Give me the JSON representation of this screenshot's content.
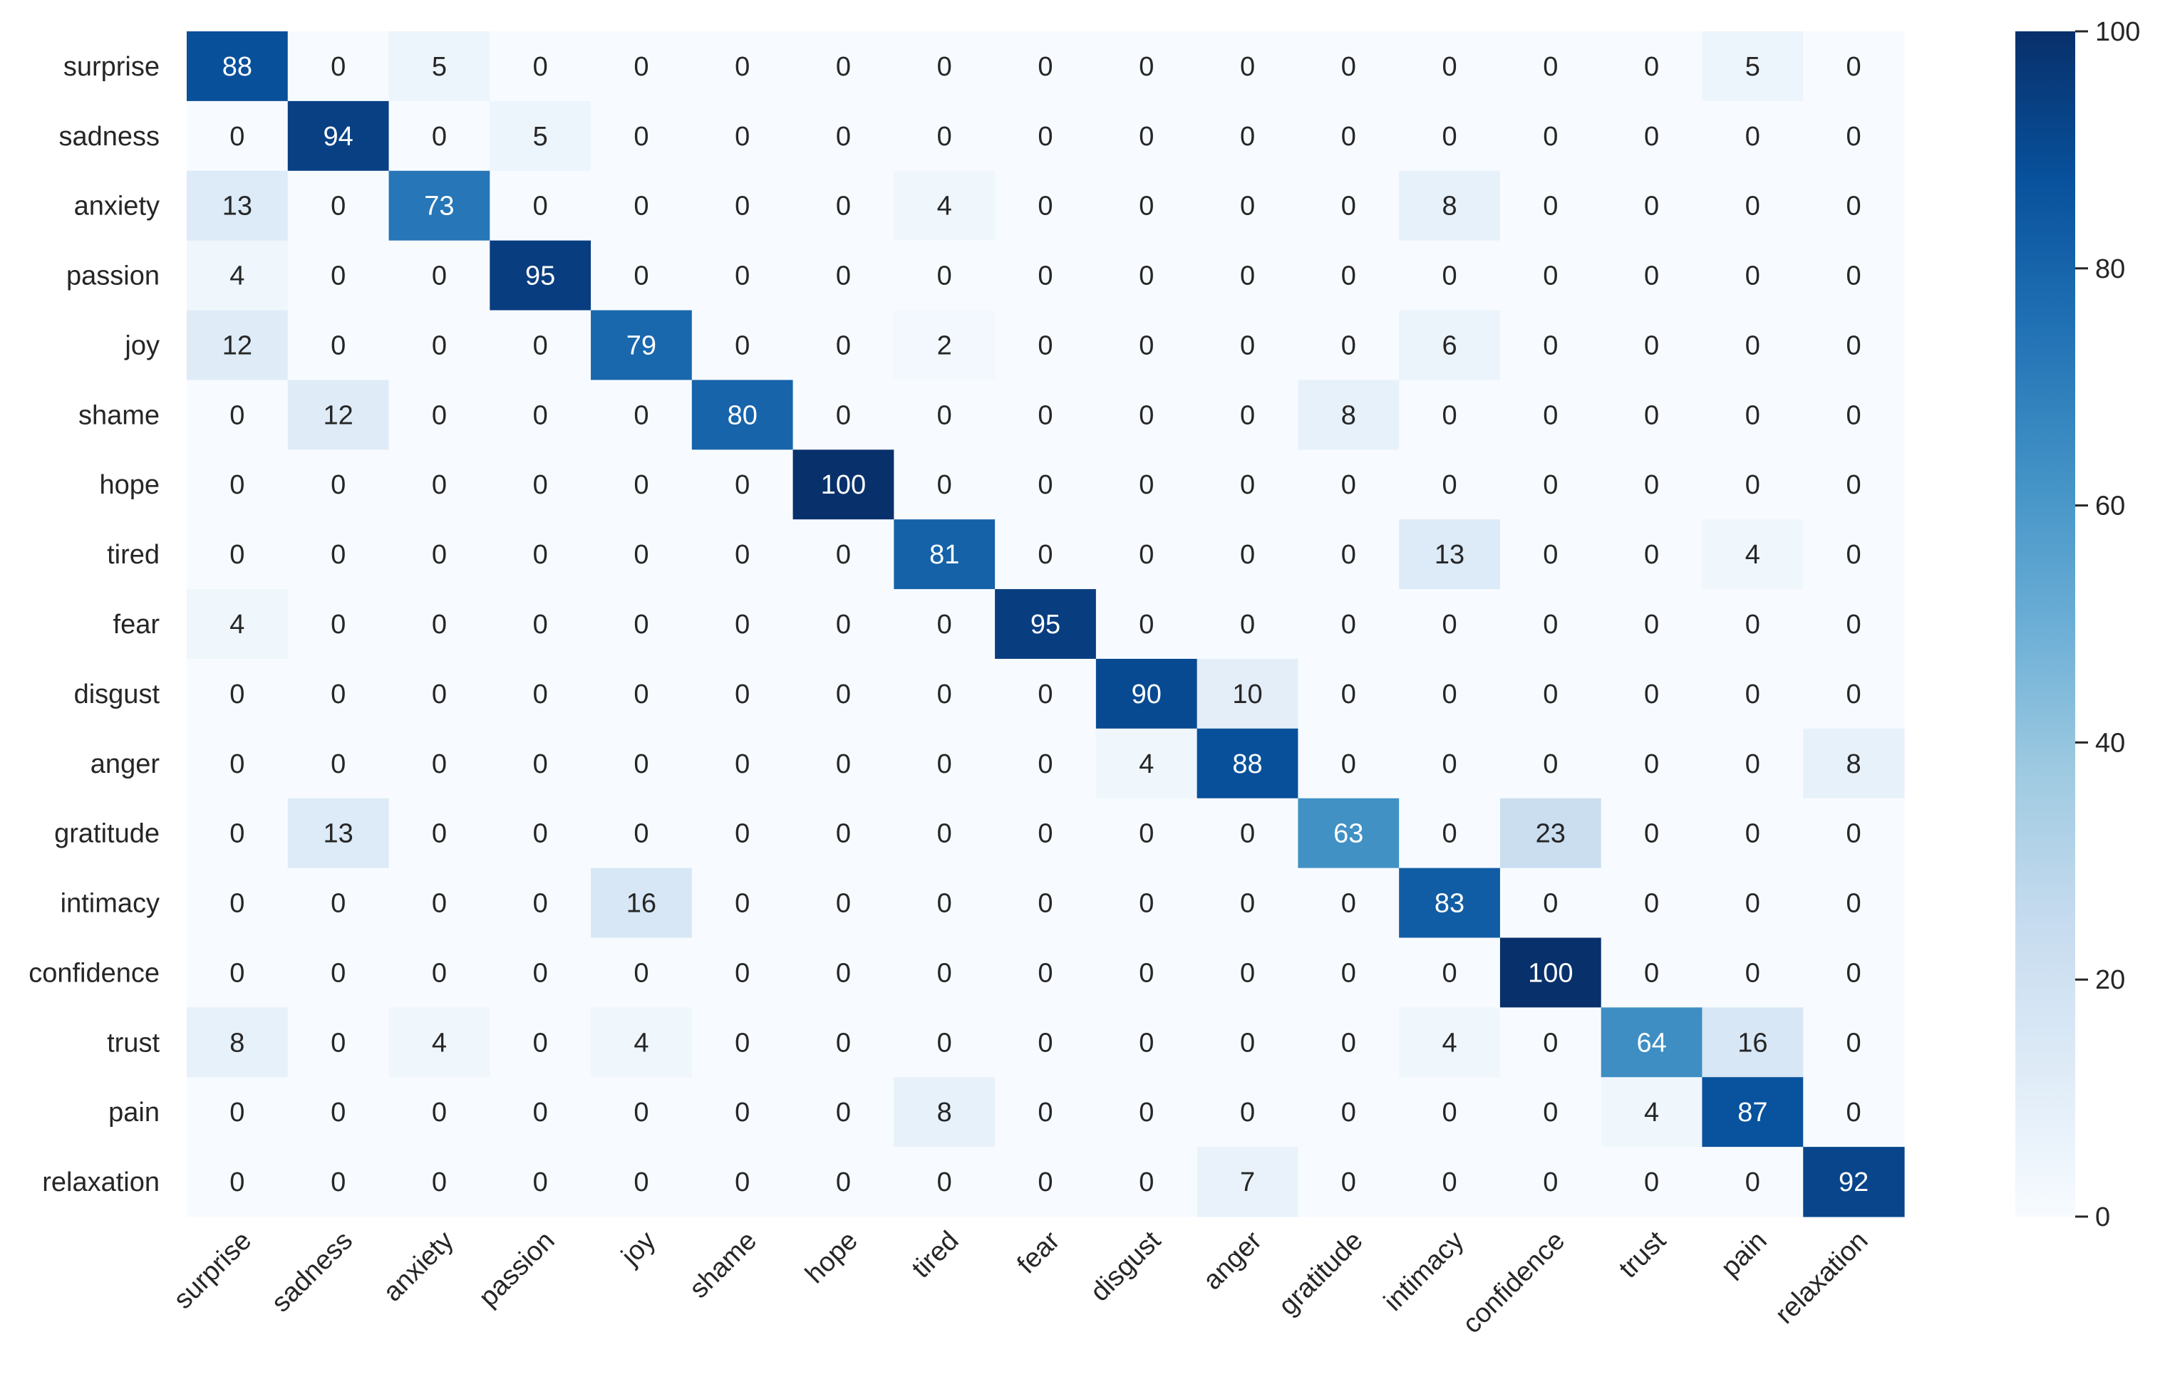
{
  "chart_data": {
    "type": "heatmap",
    "title": "",
    "xlabel": "",
    "ylabel": "",
    "row_labels": [
      "surprise",
      "sadness",
      "anxiety",
      "passion",
      "joy",
      "shame",
      "hope",
      "tired",
      "fear",
      "disgust",
      "anger",
      "gratitude",
      "intimacy",
      "confidence",
      "trust",
      "pain",
      "relaxation"
    ],
    "col_labels": [
      "surprise",
      "sadness",
      "anxiety",
      "passion",
      "joy",
      "shame",
      "hope",
      "tired",
      "fear",
      "disgust",
      "anger",
      "gratitude",
      "intimacy",
      "confidence",
      "trust",
      "pain",
      "relaxation"
    ],
    "values": [
      [
        88,
        0,
        5,
        0,
        0,
        0,
        0,
        0,
        0,
        0,
        0,
        0,
        0,
        0,
        0,
        5,
        0
      ],
      [
        0,
        94,
        0,
        5,
        0,
        0,
        0,
        0,
        0,
        0,
        0,
        0,
        0,
        0,
        0,
        0,
        0
      ],
      [
        13,
        0,
        73,
        0,
        0,
        0,
        0,
        4,
        0,
        0,
        0,
        0,
        8,
        0,
        0,
        0,
        0
      ],
      [
        4,
        0,
        0,
        95,
        0,
        0,
        0,
        0,
        0,
        0,
        0,
        0,
        0,
        0,
        0,
        0,
        0
      ],
      [
        12,
        0,
        0,
        0,
        79,
        0,
        0,
        2,
        0,
        0,
        0,
        0,
        6,
        0,
        0,
        0,
        0
      ],
      [
        0,
        12,
        0,
        0,
        0,
        80,
        0,
        0,
        0,
        0,
        0,
        8,
        0,
        0,
        0,
        0,
        0
      ],
      [
        0,
        0,
        0,
        0,
        0,
        0,
        100,
        0,
        0,
        0,
        0,
        0,
        0,
        0,
        0,
        0,
        0
      ],
      [
        0,
        0,
        0,
        0,
        0,
        0,
        0,
        81,
        0,
        0,
        0,
        0,
        13,
        0,
        0,
        4,
        0
      ],
      [
        4,
        0,
        0,
        0,
        0,
        0,
        0,
        0,
        95,
        0,
        0,
        0,
        0,
        0,
        0,
        0,
        0
      ],
      [
        0,
        0,
        0,
        0,
        0,
        0,
        0,
        0,
        0,
        90,
        10,
        0,
        0,
        0,
        0,
        0,
        0
      ],
      [
        0,
        0,
        0,
        0,
        0,
        0,
        0,
        0,
        0,
        4,
        88,
        0,
        0,
        0,
        0,
        0,
        8
      ],
      [
        0,
        13,
        0,
        0,
        0,
        0,
        0,
        0,
        0,
        0,
        0,
        63,
        0,
        23,
        0,
        0,
        0
      ],
      [
        0,
        0,
        0,
        0,
        16,
        0,
        0,
        0,
        0,
        0,
        0,
        0,
        83,
        0,
        0,
        0,
        0
      ],
      [
        0,
        0,
        0,
        0,
        0,
        0,
        0,
        0,
        0,
        0,
        0,
        0,
        0,
        100,
        0,
        0,
        0
      ],
      [
        8,
        0,
        4,
        0,
        4,
        0,
        0,
        0,
        0,
        0,
        0,
        0,
        4,
        0,
        64,
        16,
        0
      ],
      [
        0,
        0,
        0,
        0,
        0,
        0,
        0,
        8,
        0,
        0,
        0,
        0,
        0,
        0,
        4,
        87,
        0
      ],
      [
        0,
        0,
        0,
        0,
        0,
        0,
        0,
        0,
        0,
        0,
        7,
        0,
        0,
        0,
        0,
        0,
        92
      ]
    ],
    "colorbar": {
      "min": 0,
      "max": 100,
      "ticks": [
        0,
        20,
        40,
        60,
        80,
        100
      ],
      "colormap": "Blues"
    },
    "grid": false
  }
}
